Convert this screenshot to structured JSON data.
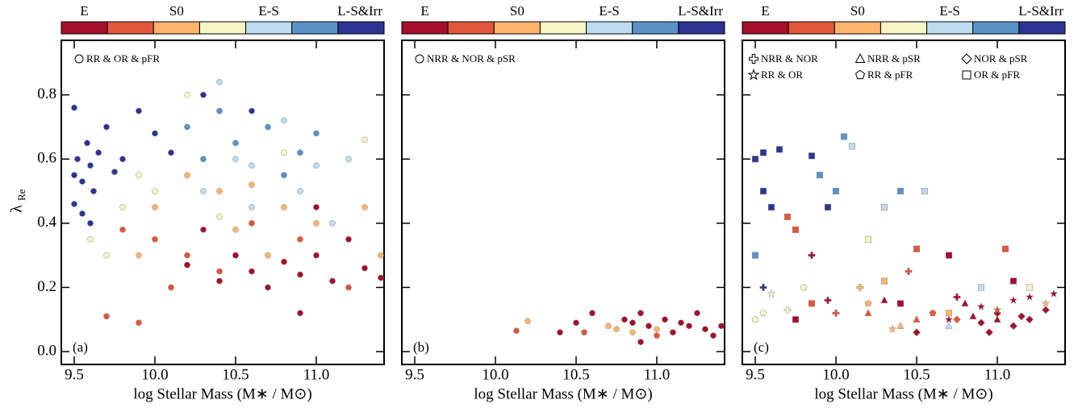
{
  "chart_data": [
    {
      "type": "scatter",
      "panel_label": "(a)",
      "x_label": "log Stellar Mass (M∗ / M⊙)",
      "y_label": "λ",
      "y_label_sub": "Re",
      "colorbar": {
        "colors": [
          "#a50f2a",
          "#e2573a",
          "#fdb56e",
          "#f7f5c6",
          "#bedcef",
          "#5b93c8",
          "#2b3591"
        ],
        "labels": [
          "E",
          "S0",
          "E-S",
          "L-S&Irr"
        ]
      },
      "xlim": [
        9.42,
        11.42
      ],
      "ylim": [
        -0.04,
        0.97
      ],
      "xticks": [
        9.5,
        {
          "value": 10,
          "label": "10.0"
        },
        10.5,
        {
          "value": 11,
          "label": "11.0"
        }
      ],
      "yticks": [
        {
          "value": 0,
          "label": "0.0"
        },
        0.2,
        0.4,
        0.6,
        0.8
      ],
      "series": [
        {
          "name": "RR & OR & pFR",
          "marker": "circle",
          "x": [
            9.5,
            9.52,
            9.55,
            9.58,
            9.6,
            9.62,
            9.65,
            9.5,
            9.7,
            9.75,
            9.55,
            9.6,
            9.9,
            10.0,
            10.3,
            10.6,
            9.8,
            10.1,
            9.5,
            10.2,
            10.4,
            10.5,
            10.7,
            10.9,
            11.0,
            10.3,
            10.8,
            10.4,
            10.5,
            10.6,
            10.8,
            11.0,
            11.2,
            10.3,
            10.6,
            10.9,
            10.5,
            11.1,
            9.6,
            9.8,
            10.0,
            10.2,
            10.4,
            9.7,
            10.8,
            11.3,
            9.9,
            10.0,
            10.2,
            10.4,
            10.6,
            10.8,
            11.0,
            11.3,
            10.5,
            9.9,
            10.7,
            11.4,
            9.7,
            9.9,
            10.0,
            10.2,
            10.4,
            10.6,
            10.9,
            10.1,
            9.8,
            11.2,
            10.2,
            10.4,
            10.5,
            10.6,
            10.7,
            10.8,
            10.9,
            11.0,
            11.1,
            11.2,
            11.3,
            11.4,
            10.3,
            11.0,
            10.9
          ],
          "values": [
            0.55,
            0.6,
            0.53,
            0.65,
            0.58,
            0.5,
            0.62,
            0.76,
            0.7,
            0.56,
            0.43,
            0.4,
            0.75,
            0.68,
            0.8,
            0.75,
            0.6,
            0.62,
            0.46,
            0.7,
            0.75,
            0.65,
            0.7,
            0.62,
            0.68,
            0.6,
            0.55,
            0.84,
            0.6,
            0.58,
            0.72,
            0.58,
            0.6,
            0.5,
            0.45,
            0.5,
            0.3,
            0.4,
            0.35,
            0.45,
            0.5,
            0.8,
            0.42,
            0.3,
            0.62,
            0.66,
            0.55,
            0.45,
            0.55,
            0.5,
            0.52,
            0.45,
            0.4,
            0.45,
            0.38,
            0.3,
            0.3,
            0.3,
            0.11,
            0.09,
            0.35,
            0.3,
            0.25,
            0.4,
            0.35,
            0.2,
            0.38,
            0.2,
            0.27,
            0.22,
            0.3,
            0.25,
            0.2,
            0.28,
            0.24,
            0.3,
            0.22,
            0.35,
            0.26,
            0.23,
            0.38,
            0.45,
            0.12
          ],
          "colors": [
            "#2b3591",
            "#2b3591",
            "#2b3591",
            "#2b3591",
            "#2b3591",
            "#2b3591",
            "#2b3591",
            "#2b3591",
            "#2b3591",
            "#2b3591",
            "#2b3591",
            "#2b3591",
            "#2b3591",
            "#2b3591",
            "#2b3591",
            "#2b3591",
            "#2b3591",
            "#2b3591",
            "#2b3591",
            "#5b93c8",
            "#5b93c8",
            "#5b93c8",
            "#5b93c8",
            "#5b93c8",
            "#5b93c8",
            "#5b93c8",
            "#5b93c8",
            "#bedcef",
            "#bedcef",
            "#bedcef",
            "#bedcef",
            "#bedcef",
            "#bedcef",
            "#bedcef",
            "#bedcef",
            "#bedcef",
            "#bedcef",
            "#bedcef",
            "#f7f5c6",
            "#f7f5c6",
            "#f7f5c6",
            "#f7f5c6",
            "#f7f5c6",
            "#f7f5c6",
            "#f7f5c6",
            "#f7f5c6",
            "#f7f5c6",
            "#fdb56e",
            "#fdb56e",
            "#fdb56e",
            "#fdb56e",
            "#fdb56e",
            "#fdb56e",
            "#fdb56e",
            "#fdb56e",
            "#fdb56e",
            "#fdb56e",
            "#fdb56e",
            "#e2573a",
            "#e2573a",
            "#e2573a",
            "#e2573a",
            "#e2573a",
            "#e2573a",
            "#e2573a",
            "#e2573a",
            "#e2573a",
            "#e2573a",
            "#a50f2a",
            "#a50f2a",
            "#a50f2a",
            "#a50f2a",
            "#a50f2a",
            "#a50f2a",
            "#a50f2a",
            "#a50f2a",
            "#a50f2a",
            "#a50f2a",
            "#a50f2a",
            "#a50f2a",
            "#a50f2a",
            "#a50f2a",
            "#a50f2a"
          ]
        }
      ]
    },
    {
      "type": "scatter",
      "panel_label": "(b)",
      "x_label": "log Stellar Mass (M∗ / M⊙)",
      "colorbar": {
        "colors": [
          "#a50f2a",
          "#e2573a",
          "#fdb56e",
          "#f7f5c6",
          "#bedcef",
          "#5b93c8",
          "#2b3591"
        ],
        "labels": [
          "E",
          "S0",
          "E-S",
          "L-S&Irr"
        ]
      },
      "xlim": [
        9.42,
        11.42
      ],
      "ylim": [
        -0.04,
        0.97
      ],
      "xticks": [
        9.5,
        {
          "value": 10,
          "label": "10.0"
        },
        10.5,
        {
          "value": 11,
          "label": "11.0"
        }
      ],
      "yticks": [
        0,
        0.2,
        0.4,
        0.6,
        0.8
      ],
      "series": [
        {
          "name": "NRR & NOR & pSR",
          "marker": "circle",
          "x": [
            10.13,
            10.2,
            10.4,
            10.5,
            10.55,
            10.6,
            10.7,
            10.8,
            10.85,
            10.9,
            10.95,
            11.0,
            11.05,
            11.1,
            11.15,
            11.2,
            11.25,
            11.3,
            11.35,
            11.4,
            10.9,
            11.0,
            10.75,
            10.85
          ],
          "values": [
            0.065,
            0.095,
            0.06,
            0.09,
            0.06,
            0.12,
            0.08,
            0.1,
            0.06,
            0.12,
            0.08,
            0.07,
            0.1,
            0.06,
            0.09,
            0.08,
            0.12,
            0.07,
            0.05,
            0.08,
            0.03,
            0.05,
            0.07,
            0.09
          ],
          "colors": [
            "#e2573a",
            "#fdb56e",
            "#a50f2a",
            "#a50f2a",
            "#e2573a",
            "#a50f2a",
            "#fdb56e",
            "#a50f2a",
            "#fdb56e",
            "#a50f2a",
            "#a50f2a",
            "#fdb56e",
            "#a50f2a",
            "#a50f2a",
            "#a50f2a",
            "#a50f2a",
            "#a50f2a",
            "#a50f2a",
            "#a50f2a",
            "#a50f2a",
            "#a50f2a",
            "#e2573a",
            "#fdb56e",
            "#a50f2a"
          ]
        }
      ]
    },
    {
      "type": "scatter",
      "panel_label": "(c)",
      "x_label": "log Stellar Mass (M∗ / M⊙)",
      "colorbar": {
        "colors": [
          "#a50f2a",
          "#e2573a",
          "#fdb56e",
          "#f7f5c6",
          "#bedcef",
          "#5b93c8",
          "#2b3591"
        ],
        "labels": [
          "E",
          "S0",
          "E-S",
          "L-S&Irr"
        ]
      },
      "xlim": [
        9.42,
        11.42
      ],
      "ylim": [
        -0.04,
        0.97
      ],
      "xticks": [
        9.5,
        {
          "value": 10,
          "label": "10.0"
        },
        10.5,
        {
          "value": 11,
          "label": "11.0"
        }
      ],
      "yticks": [
        0,
        0.2,
        0.4,
        0.6,
        0.8
      ],
      "series": [
        {
          "name": "NRR & NOR",
          "marker": "plus",
          "x": [
            9.55,
            9.85,
            9.95,
            10.0,
            10.15,
            10.45,
            10.75,
            9.7
          ],
          "values": [
            0.2,
            0.3,
            0.16,
            0.12,
            0.2,
            0.25,
            0.17,
            0.13
          ],
          "colors": [
            "#2b3591",
            "#a50f2a",
            "#a50f2a",
            "#e2573a",
            "#fdb56e",
            "#e2573a",
            "#a50f2a",
            "#f7f5c6"
          ]
        },
        {
          "name": "NRR & pSR",
          "marker": "triangle",
          "x": [
            10.2,
            10.3,
            10.5,
            10.7,
            10.8,
            11.0,
            10.4,
            10.85
          ],
          "values": [
            0.12,
            0.16,
            0.1,
            0.08,
            0.15,
            0.1,
            0.08,
            0.11
          ],
          "colors": [
            "#e2573a",
            "#a50f2a",
            "#e2573a",
            "#bedcef",
            "#a50f2a",
            "#a50f2a",
            "#fdb56e",
            "#a50f2a"
          ]
        },
        {
          "name": "NOR & pSR",
          "marker": "diamond",
          "x": [
            10.9,
            11.0,
            11.1,
            11.15,
            10.95,
            11.2,
            10.75,
            11.3,
            10.5
          ],
          "values": [
            0.09,
            0.12,
            0.08,
            0.11,
            0.06,
            0.1,
            0.1,
            0.13,
            0.06
          ],
          "colors": [
            "#a50f2a",
            "#a50f2a",
            "#a50f2a",
            "#a50f2a",
            "#a50f2a",
            "#a50f2a",
            "#e2573a",
            "#a50f2a",
            "#a50f2a"
          ]
        },
        {
          "name": "RR & OR",
          "marker": "star",
          "x": [
            9.6,
            10.7,
            11.0,
            11.1,
            11.2,
            11.3,
            11.35,
            10.35,
            10.9
          ],
          "values": [
            0.18,
            0.1,
            0.13,
            0.16,
            0.17,
            0.15,
            0.18,
            0.07,
            0.14
          ],
          "colors": [
            "#f7f5c6",
            "#a50f2a",
            "#e2573a",
            "#a50f2a",
            "#a50f2a",
            "#fdb56e",
            "#a50f2a",
            "#fdb56e",
            "#a50f2a"
          ]
        },
        {
          "name": "RR & pFR",
          "marker": "pentagon",
          "x": [
            9.5,
            9.55,
            10.2,
            10.6,
            9.8
          ],
          "values": [
            0.1,
            0.12,
            0.15,
            0.12,
            0.2
          ],
          "colors": [
            "#f7f5c6",
            "#f7f5c6",
            "#fdb56e",
            "#e2573a",
            "#f7f5c6"
          ]
        },
        {
          "name": "OR & pFR",
          "marker": "square",
          "x": [
            9.5,
            9.55,
            9.65,
            9.55,
            9.6,
            9.7,
            9.75,
            9.85,
            9.9,
            9.95,
            10.05,
            10.1,
            10.0,
            10.3,
            10.4,
            10.55,
            10.2,
            10.3,
            10.5,
            10.7,
            10.9,
            11.05,
            10.4,
            10.7,
            11.1,
            11.2,
            9.75,
            9.85,
            9.5
          ],
          "values": [
            0.6,
            0.62,
            0.63,
            0.5,
            0.45,
            0.42,
            0.38,
            0.61,
            0.55,
            0.45,
            0.67,
            0.64,
            0.5,
            0.45,
            0.5,
            0.5,
            0.35,
            0.22,
            0.32,
            0.3,
            0.2,
            0.32,
            0.15,
            0.12,
            0.22,
            0.2,
            0.1,
            0.15,
            0.3
          ],
          "colors": [
            "#2b3591",
            "#2b3591",
            "#2b3591",
            "#2b3591",
            "#2b3591",
            "#e2573a",
            "#e2573a",
            "#2b3591",
            "#5b93c8",
            "#2b3591",
            "#5b93c8",
            "#bedcef",
            "#5b93c8",
            "#bedcef",
            "#5b93c8",
            "#bedcef",
            "#f7f5c6",
            "#fdb56e",
            "#e2573a",
            "#a50f2a",
            "#bedcef",
            "#e2573a",
            "#a50f2a",
            "#fdb56e",
            "#a50f2a",
            "#f7f5c6",
            "#a50f2a",
            "#e2573a",
            "#5b93c8"
          ]
        }
      ]
    }
  ]
}
